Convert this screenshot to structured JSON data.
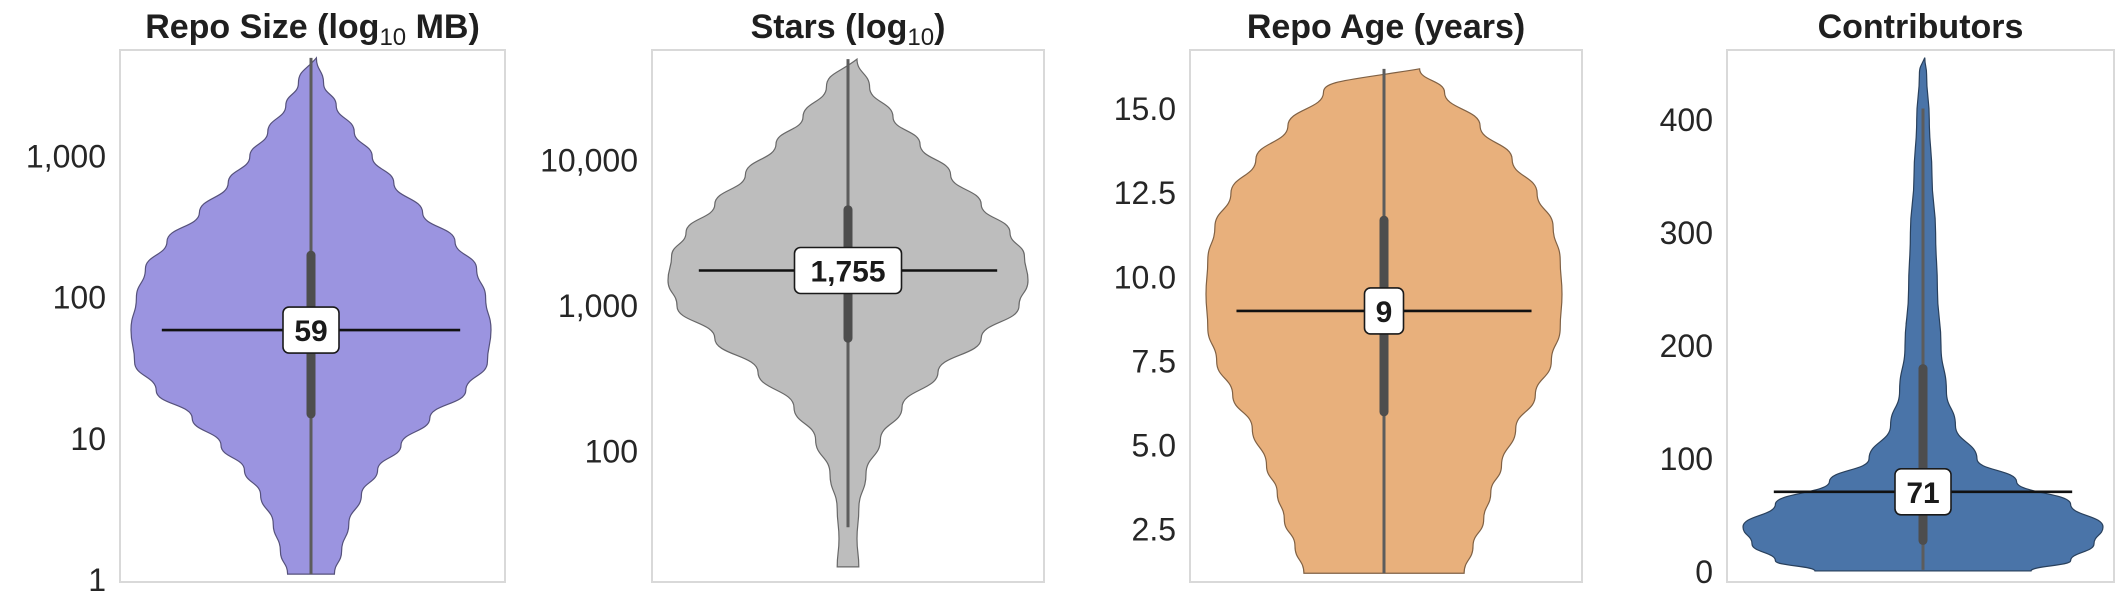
{
  "chart_data": [
    {
      "type": "violin",
      "title_prefix": "Repo Size (log",
      "title_sub": "10",
      "title_suffix": " MB)",
      "scale": "log10",
      "ylim": [
        1,
        5500
      ],
      "yticks": [
        1,
        10,
        100,
        1000
      ],
      "ytick_labels": [
        "1",
        "10",
        "100",
        "1,000"
      ],
      "median": 59,
      "median_label": "59",
      "box": {
        "q1": 15,
        "q3": 200
      },
      "whisker": {
        "low": 1.1,
        "high": 5000
      },
      "density": [
        [
          1.1,
          0.13
        ],
        [
          1.6,
          0.17
        ],
        [
          2.5,
          0.21
        ],
        [
          4,
          0.28
        ],
        [
          6,
          0.37
        ],
        [
          9,
          0.5
        ],
        [
          14,
          0.66
        ],
        [
          22,
          0.86
        ],
        [
          35,
          0.98
        ],
        [
          59,
          1.0
        ],
        [
          100,
          0.97
        ],
        [
          160,
          0.92
        ],
        [
          250,
          0.8
        ],
        [
          400,
          0.62
        ],
        [
          650,
          0.46
        ],
        [
          1000,
          0.34
        ],
        [
          1500,
          0.24
        ],
        [
          2300,
          0.14
        ],
        [
          3300,
          0.07
        ],
        [
          5000,
          0.03
        ]
      ],
      "color": "#9b94e0"
    },
    {
      "type": "violin",
      "title_prefix": "Stars (log",
      "title_sub": "10",
      "title_suffix": ")",
      "scale": "log10",
      "ylim": [
        13,
        56000
      ],
      "yticks": [
        100,
        1000,
        10000
      ],
      "ytick_labels": [
        "100",
        "1,000",
        "10,000"
      ],
      "median": 1755,
      "median_label": "1,755",
      "box": {
        "q1": 600,
        "q3": 4600
      },
      "whisker": {
        "low": 30,
        "high": 50000
      },
      "density": [
        [
          16,
          0.06
        ],
        [
          25,
          0.05
        ],
        [
          40,
          0.06
        ],
        [
          70,
          0.1
        ],
        [
          120,
          0.18
        ],
        [
          200,
          0.3
        ],
        [
          350,
          0.5
        ],
        [
          600,
          0.74
        ],
        [
          1000,
          0.95
        ],
        [
          1500,
          1.0
        ],
        [
          2200,
          0.98
        ],
        [
          3200,
          0.9
        ],
        [
          5000,
          0.74
        ],
        [
          8000,
          0.57
        ],
        [
          13000,
          0.4
        ],
        [
          20000,
          0.25
        ],
        [
          32000,
          0.12
        ],
        [
          50000,
          0.05
        ]
      ],
      "color": "#bdbdbd"
    },
    {
      "type": "violin",
      "title": "Repo Age (years)",
      "scale": "linear",
      "ylim": [
        1.0,
        16.7
      ],
      "yticks": [
        2.5,
        5.0,
        7.5,
        10.0,
        12.5,
        15.0
      ],
      "ytick_labels": [
        "2.5",
        "5.0",
        "7.5",
        "10.0",
        "12.5",
        "15.0"
      ],
      "median": 9,
      "median_label": "9",
      "box": {
        "q1": 6,
        "q3": 11.7
      },
      "whisker": {
        "low": 1.2,
        "high": 16.2
      },
      "density": [
        [
          1.2,
          0.45
        ],
        [
          2.0,
          0.5
        ],
        [
          2.8,
          0.56
        ],
        [
          3.6,
          0.6
        ],
        [
          4.4,
          0.66
        ],
        [
          5.5,
          0.74
        ],
        [
          6.5,
          0.85
        ],
        [
          7.5,
          0.94
        ],
        [
          8.5,
          0.99
        ],
        [
          9.5,
          1.0
        ],
        [
          10.5,
          0.99
        ],
        [
          11.5,
          0.95
        ],
        [
          12.5,
          0.86
        ],
        [
          13.5,
          0.72
        ],
        [
          14.5,
          0.54
        ],
        [
          15.5,
          0.34
        ],
        [
          16.2,
          0.2
        ]
      ],
      "color": "#e8b07c"
    },
    {
      "type": "violin",
      "title": "Contributors",
      "scale": "linear",
      "ylim": [
        -7,
        460
      ],
      "yticks": [
        0,
        100,
        200,
        300,
        400
      ],
      "ytick_labels": [
        "0",
        "100",
        "200",
        "300",
        "400"
      ],
      "median": 71,
      "median_label": "71",
      "box": {
        "q1": 28,
        "q3": 180
      },
      "whisker": {
        "low": 2,
        "high": 410
      },
      "density": [
        [
          1,
          0.6
        ],
        [
          10,
          0.82
        ],
        [
          25,
          0.95
        ],
        [
          40,
          1.0
        ],
        [
          60,
          0.82
        ],
        [
          80,
          0.52
        ],
        [
          100,
          0.3
        ],
        [
          130,
          0.18
        ],
        [
          160,
          0.13
        ],
        [
          200,
          0.1
        ],
        [
          250,
          0.08
        ],
        [
          300,
          0.07
        ],
        [
          350,
          0.05
        ],
        [
          400,
          0.035
        ],
        [
          440,
          0.02
        ],
        [
          455,
          0.01
        ]
      ],
      "color": "#4a74a8"
    }
  ]
}
